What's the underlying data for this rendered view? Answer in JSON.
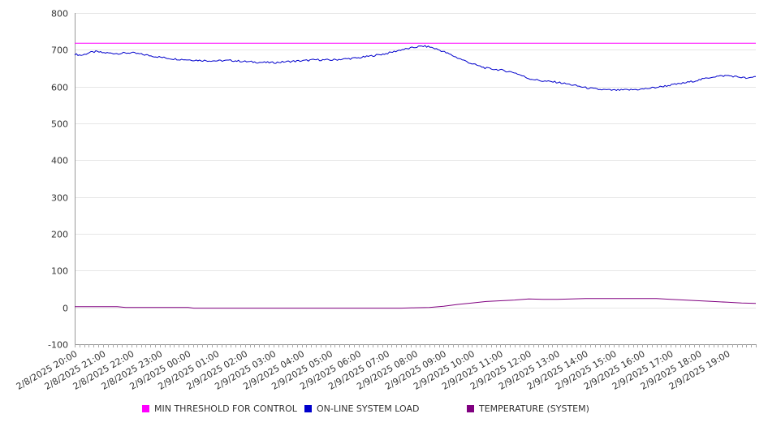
{
  "chart_data": {
    "type": "line",
    "title": "",
    "xlabel": "",
    "ylabel": "",
    "ylim": [
      -100,
      800
    ],
    "yticks": [
      800,
      700,
      600,
      500,
      400,
      300,
      200,
      100,
      0,
      -100
    ],
    "x_tick_labels": [
      "2/8/2025 20:00",
      "2/8/2025 21:00",
      "2/8/2025 22:00",
      "2/8/2025 23:00",
      "2/9/2025 00:00",
      "2/9/2025 01:00",
      "2/9/2025 02:00",
      "2/9/2025 03:00",
      "2/9/2025 04:00",
      "2/9/2025 05:00",
      "2/9/2025 06:00",
      "2/9/2025 07:00",
      "2/9/2025 08:00",
      "2/9/2025 09:00",
      "2/9/2025 10:00",
      "2/9/2025 11:00",
      "2/9/2025 12:00",
      "2/9/2025 13:00",
      "2/9/2025 14:00",
      "2/9/2025 15:00",
      "2/9/2025 16:00",
      "2/9/2025 17:00",
      "2/9/2025 18:00",
      "2/9/2025 19:00"
    ],
    "x_range_hours": [
      0,
      24
    ],
    "grid": true,
    "legend_position": "bottom",
    "series": [
      {
        "name": "MIN THRESHOLD FOR CONTROL",
        "color": "#ff00ff",
        "hours": [
          0,
          24
        ],
        "values": [
          718,
          718
        ]
      },
      {
        "name": "ON-LINE SYSTEM LOAD",
        "color": "#0000cc",
        "hours": [
          0,
          0.25,
          0.5,
          0.75,
          1,
          1.5,
          2,
          2.5,
          3,
          3.5,
          4,
          4.5,
          5,
          5.5,
          6,
          6.5,
          7,
          7.5,
          8,
          8.5,
          9,
          9.5,
          10,
          10.5,
          11,
          11.5,
          11.75,
          12,
          12.25,
          12.5,
          12.75,
          13,
          13.5,
          14,
          14.5,
          15,
          15.5,
          16,
          16.5,
          17,
          17.5,
          18,
          18.5,
          19,
          19.5,
          20,
          20.5,
          21,
          21.5,
          22,
          22.5,
          23,
          23.5,
          23.75,
          24
        ],
        "values": [
          688,
          685,
          692,
          695,
          692,
          690,
          692,
          686,
          680,
          675,
          673,
          671,
          670,
          671,
          668,
          666,
          665,
          668,
          670,
          673,
          672,
          675,
          678,
          684,
          690,
          700,
          703,
          707,
          710,
          708,
          702,
          695,
          678,
          662,
          650,
          645,
          638,
          622,
          615,
          612,
          605,
          597,
          592,
          590,
          591,
          593,
          598,
          604,
          610,
          618,
          627,
          630,
          625,
          622,
          628
        ]
      },
      {
        "name": "TEMPERATURE (SYSTEM)",
        "color": "#800080",
        "hours": [
          0,
          1.5,
          1.8,
          4,
          4.2,
          6,
          8,
          10,
          11.5,
          12,
          12.5,
          13,
          13.5,
          14,
          14.5,
          15,
          15.5,
          16,
          16.5,
          17,
          17.5,
          18,
          19,
          20,
          20.5,
          21,
          21.5,
          22,
          22.5,
          23,
          23.5,
          24
        ],
        "values": [
          2,
          2,
          0,
          0,
          -2,
          -2,
          -2,
          -2,
          -2,
          -1,
          0,
          3,
          8,
          12,
          16,
          18,
          20,
          23,
          22,
          22,
          23,
          24,
          24,
          24,
          24,
          22,
          20,
          18,
          16,
          14,
          12,
          11
        ]
      }
    ]
  }
}
